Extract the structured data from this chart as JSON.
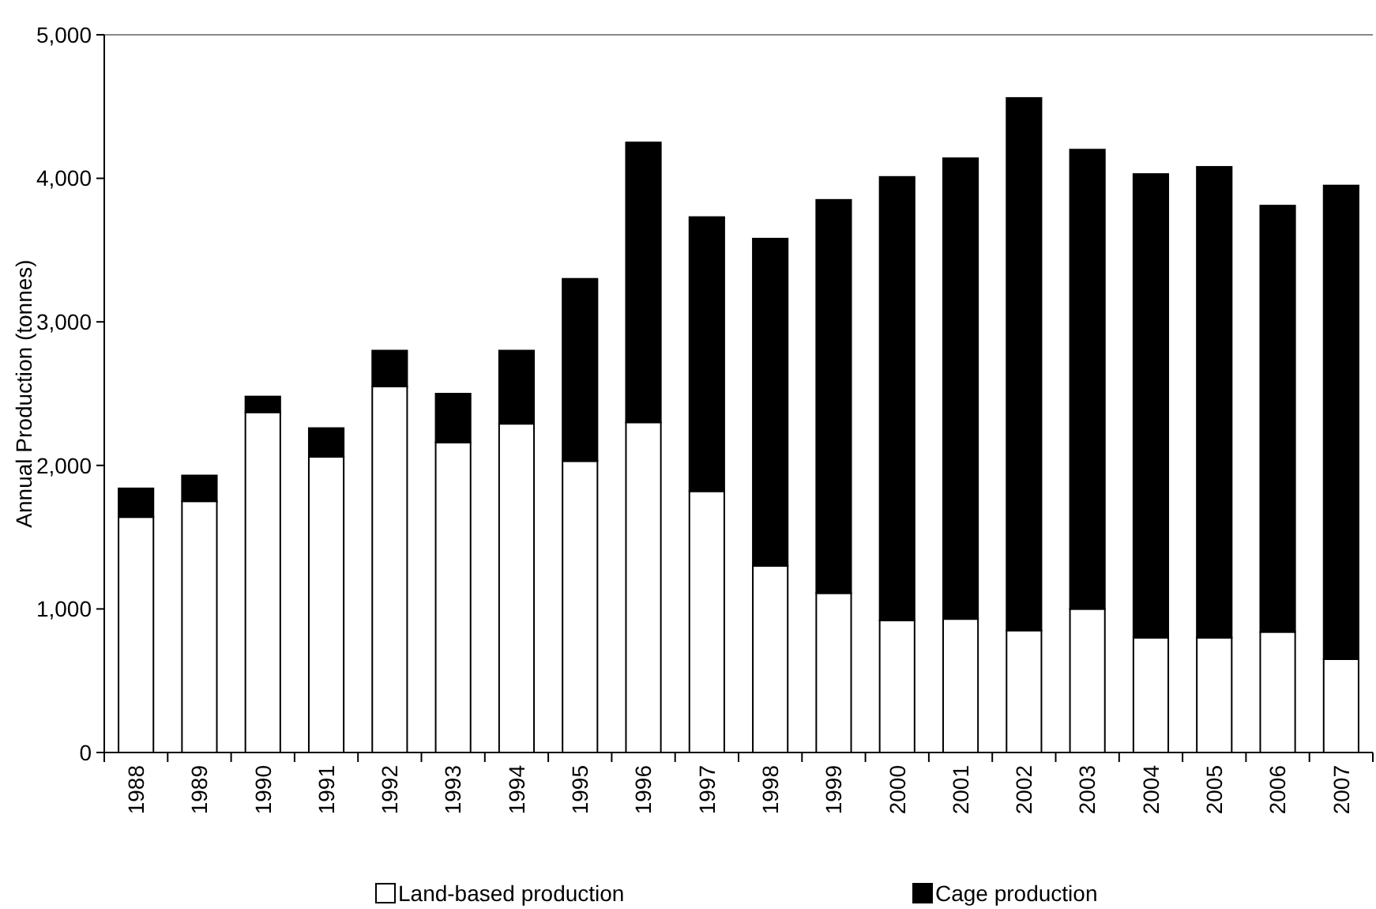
{
  "chart_data": {
    "type": "bar",
    "stacked": true,
    "ylabel": "Annual Production (tonnes)",
    "categories": [
      "1988",
      "1989",
      "1990",
      "1991",
      "1992",
      "1993",
      "1994",
      "1995",
      "1996",
      "1997",
      "1998",
      "1999",
      "2000",
      "2001",
      "2002",
      "2003",
      "2004",
      "2005",
      "2006",
      "2007"
    ],
    "series": [
      {
        "name": "Land-based production",
        "color": "#ffffff",
        "values": [
          1640,
          1750,
          2370,
          2060,
          2550,
          2160,
          2290,
          2030,
          2300,
          1820,
          1300,
          1110,
          920,
          930,
          850,
          1000,
          800,
          800,
          840,
          650
        ]
      },
      {
        "name": "Cage production",
        "color": "#000000",
        "values": [
          200,
          180,
          110,
          200,
          250,
          340,
          510,
          1270,
          1950,
          1910,
          2280,
          2740,
          3090,
          3210,
          3710,
          3200,
          3230,
          3280,
          2970,
          3300
        ]
      }
    ],
    "ylim": [
      0,
      5000
    ],
    "yticks": [
      {
        "value": 0,
        "label": "0"
      },
      {
        "value": 1000,
        "label": "1,000"
      },
      {
        "value": 2000,
        "label": "2,000"
      },
      {
        "value": 3000,
        "label": "3,000"
      },
      {
        "value": 4000,
        "label": "4,000"
      },
      {
        "value": 5000,
        "label": "5,000"
      }
    ],
    "grid": false,
    "legend": "bottom"
  }
}
